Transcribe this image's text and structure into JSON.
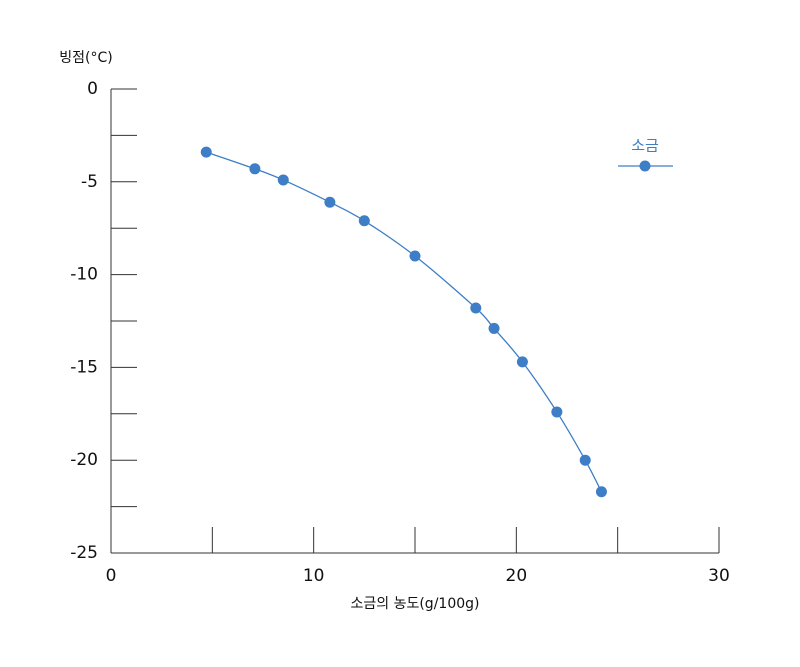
{
  "chart_data": {
    "type": "line",
    "ylabel": "빙점(°C)",
    "xlabel": "소금의 농도(g/100g)",
    "xlim": [
      0,
      30
    ],
    "xticks": [
      0,
      10,
      20,
      30
    ],
    "xminorticks": [
      5,
      15,
      25
    ],
    "ylim": [
      -25,
      0
    ],
    "yticks": [
      0,
      -5,
      -10,
      -15,
      -20,
      -25
    ],
    "yminorticks": [
      -2.5,
      -7.5,
      -12.5,
      -17.5,
      -22.5
    ],
    "legend": "upper right",
    "series": [
      {
        "name": "소금",
        "color": "#3d7ec6",
        "x": [
          4.7,
          7.1,
          8.5,
          10.8,
          12.5,
          15.0,
          18.0,
          18.9,
          20.3,
          22.0,
          23.4,
          24.2
        ],
        "values": [
          -3.4,
          -4.3,
          -4.9,
          -6.1,
          -7.1,
          -9.0,
          -11.8,
          -12.9,
          -14.7,
          -17.4,
          -20.0,
          -21.7
        ]
      }
    ]
  }
}
